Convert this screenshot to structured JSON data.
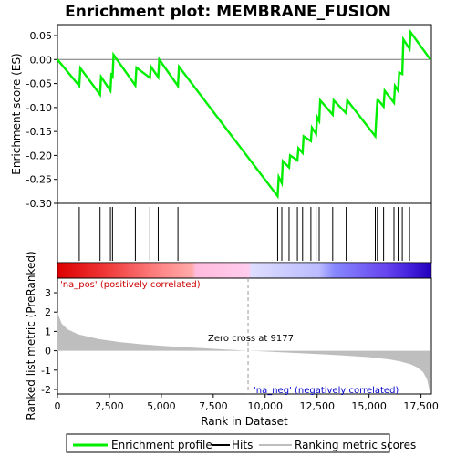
{
  "chart_data": {
    "type": "line",
    "title": "Enrichment plot: MEMBRANE_FUSION",
    "top_panel": {
      "ylabel": "Enrichment score (ES)",
      "ylim": [
        -0.3,
        0.06
      ],
      "yticks": [
        0.05,
        0.0,
        -0.05,
        -0.1,
        -0.15,
        -0.2,
        -0.25,
        -0.3
      ],
      "ytick_labels": [
        "0.05",
        "0.00",
        "-0.05",
        "-0.10",
        "-0.15",
        "-0.20",
        "-0.25",
        "-0.30"
      ],
      "series": [
        {
          "name": "Enrichment profile",
          "color": "#00ee00",
          "x": [
            0,
            1050,
            1100,
            2050,
            2100,
            2550,
            2600,
            2650,
            2700,
            3750,
            3800,
            4450,
            4500,
            4850,
            4900,
            5800,
            5850,
            10600,
            10650,
            10800,
            10850,
            11150,
            11200,
            11550,
            11600,
            11800,
            11850,
            12200,
            12250,
            12450,
            12500,
            12600,
            12650,
            13250,
            13300,
            13900,
            13950,
            15300,
            15350,
            15400,
            15450,
            15700,
            15750,
            16200,
            16250,
            16400,
            16450,
            16600,
            16650,
            16950,
            17000,
            17950
          ],
          "y": [
            0.0,
            -0.055,
            -0.018,
            -0.073,
            -0.036,
            -0.065,
            -0.028,
            -0.04,
            0.01,
            -0.054,
            -0.017,
            -0.038,
            -0.015,
            -0.037,
            0.0,
            -0.055,
            -0.015,
            -0.285,
            -0.245,
            -0.258,
            -0.212,
            -0.225,
            -0.2,
            -0.21,
            -0.185,
            -0.195,
            -0.16,
            -0.17,
            -0.142,
            -0.155,
            -0.12,
            -0.128,
            -0.085,
            -0.115,
            -0.085,
            -0.112,
            -0.085,
            -0.16,
            -0.122,
            -0.085,
            -0.085,
            -0.098,
            -0.065,
            -0.09,
            -0.055,
            -0.065,
            -0.027,
            -0.03,
            0.042,
            0.022,
            0.057,
            0.0
          ]
        }
      ]
    },
    "hits": {
      "name": "Hits",
      "x": [
        1050,
        2050,
        2550,
        2650,
        3750,
        4450,
        4850,
        5800,
        10600,
        10800,
        11150,
        11550,
        11800,
        12200,
        12450,
        12600,
        13250,
        13900,
        15300,
        15400,
        15700,
        16200,
        16400,
        16600,
        16950
      ]
    },
    "bottom_panel": {
      "ylabel": "Ranked list metric (PreRanked)",
      "xlabel": "Rank in Dataset",
      "xlim": [
        0,
        18000
      ],
      "ylim": [
        -2.8,
        3.2
      ],
      "yticks": [
        3,
        2,
        1,
        0,
        -1,
        -2
      ],
      "ytick_labels": [
        "3",
        "2",
        "1",
        "0",
        "-1",
        "-2"
      ],
      "xticks": [
        0,
        2500,
        5000,
        7500,
        10000,
        12500,
        15000,
        17500
      ],
      "xtick_labels": [
        "0",
        "2,500",
        "5,000",
        "7,500",
        "10,000",
        "12,500",
        "15,000",
        "17,500"
      ],
      "series": [
        {
          "name": "Ranking metric scores",
          "color": "#bebebe",
          "x": [
            0,
            50,
            200,
            500,
            1000,
            2000,
            3000,
            4000,
            5000,
            6000,
            7000,
            8000,
            9177,
            10000,
            11000,
            12000,
            13000,
            14000,
            15000,
            16000,
            16500,
            17000,
            17300,
            17600,
            17800,
            17900,
            17950
          ],
          "y": [
            2.0,
            1.85,
            1.4,
            1.1,
            0.85,
            0.6,
            0.45,
            0.34,
            0.26,
            0.19,
            0.13,
            0.07,
            0.0,
            -0.04,
            -0.09,
            -0.14,
            -0.2,
            -0.26,
            -0.33,
            -0.45,
            -0.55,
            -0.7,
            -0.85,
            -1.1,
            -1.5,
            -2.0,
            -2.55
          ]
        }
      ],
      "zero_cross_label": "Zero cross at 9177",
      "pos_label": "'na_pos' (positively correlated)",
      "neg_label": "'na_neg' (negatively correlated)",
      "pos_color": "#cc0000",
      "neg_color": "#0000cc"
    },
    "legend": [
      "Enrichment profile",
      "Hits",
      "Ranking metric scores"
    ]
  }
}
